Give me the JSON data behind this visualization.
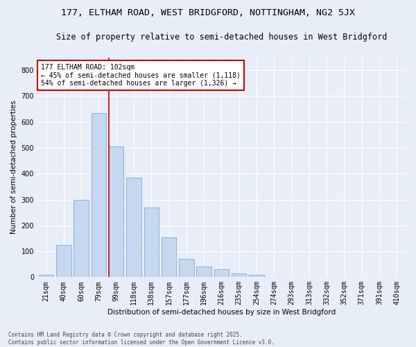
{
  "title1": "177, ELTHAM ROAD, WEST BRIDGFORD, NOTTINGHAM, NG2 5JX",
  "title2": "Size of property relative to semi-detached houses in West Bridgford",
  "xlabel": "Distribution of semi-detached houses by size in West Bridgford",
  "ylabel": "Number of semi-detached properties",
  "footnote": "Contains HM Land Registry data © Crown copyright and database right 2025.\nContains public sector information licensed under the Open Government Licence v3.0.",
  "categories": [
    "21sqm",
    "40sqm",
    "60sqm",
    "79sqm",
    "99sqm",
    "118sqm",
    "138sqm",
    "157sqm",
    "177sqm",
    "196sqm",
    "216sqm",
    "235sqm",
    "254sqm",
    "274sqm",
    "293sqm",
    "313sqm",
    "332sqm",
    "352sqm",
    "371sqm",
    "391sqm",
    "410sqm"
  ],
  "values": [
    10,
    125,
    300,
    635,
    505,
    385,
    270,
    155,
    70,
    40,
    30,
    15,
    10,
    0,
    0,
    0,
    0,
    0,
    0,
    0,
    0
  ],
  "bar_color": "#c5d8f0",
  "bar_edge_color": "#7aadd4",
  "property_line_x": 4.0,
  "property_line_color": "#cc0000",
  "annotation_text": "177 ELTHAM ROAD: 102sqm\n← 45% of semi-detached houses are smaller (1,118)\n54% of semi-detached houses are larger (1,326) →",
  "annotation_box_facecolor": "#ffffff",
  "annotation_box_edgecolor": "#cc0000",
  "ylim": [
    0,
    850
  ],
  "yticks": [
    0,
    100,
    200,
    300,
    400,
    500,
    600,
    700,
    800
  ],
  "bg_color": "#e8eef8",
  "grid_color": "#ffffff",
  "title1_fontsize": 9.5,
  "title2_fontsize": 8.5,
  "axis_label_fontsize": 7.5,
  "tick_fontsize": 7,
  "annot_fontsize": 7,
  "footnote_fontsize": 5.5
}
